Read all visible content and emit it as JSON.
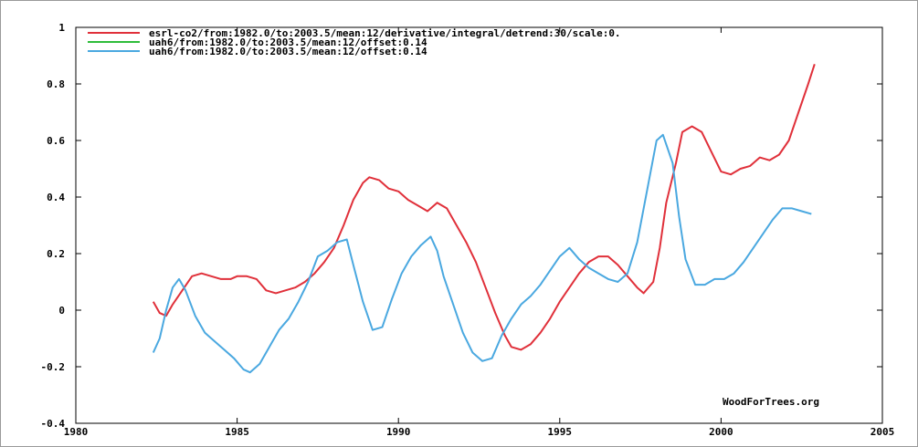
{
  "chart_data": {
    "type": "line",
    "title": "",
    "xlabel": "",
    "ylabel": "",
    "xlim": [
      1980,
      2005
    ],
    "ylim": [
      -0.4,
      1
    ],
    "xticks": [
      1980,
      1985,
      1990,
      1995,
      2000,
      2005
    ],
    "yticks": [
      -0.4,
      -0.2,
      0,
      0.2,
      0.4,
      0.6,
      0.8,
      1
    ],
    "xtick_labels": [
      "1980",
      "1985",
      "1990",
      "1995",
      "2000",
      "2005"
    ],
    "ytick_labels": [
      "-0.4",
      "-0.2",
      "0",
      "0.2",
      "0.4",
      "0.6",
      "0.8",
      "1"
    ],
    "grid": false,
    "legend_position": "top-left",
    "credit": "WoodForTrees.org",
    "series": [
      {
        "name": "esrl-co2/from:1982.0/to:2003.5/mean:12/derivative/integral/detrend:30/scale:0.",
        "color": "#e0303a",
        "x": [
          1982.4,
          1982.6,
          1982.8,
          1983.0,
          1983.3,
          1983.6,
          1983.9,
          1984.2,
          1984.5,
          1984.8,
          1985.0,
          1985.3,
          1985.6,
          1985.9,
          1986.2,
          1986.5,
          1986.8,
          1987.1,
          1987.4,
          1987.7,
          1988.0,
          1988.3,
          1988.6,
          1988.9,
          1989.1,
          1989.4,
          1989.7,
          1990.0,
          1990.3,
          1990.6,
          1990.9,
          1991.2,
          1991.5,
          1991.8,
          1992.1,
          1992.4,
          1992.7,
          1993.0,
          1993.3,
          1993.5,
          1993.8,
          1994.1,
          1994.4,
          1994.7,
          1995.0,
          1995.3,
          1995.6,
          1995.9,
          1996.2,
          1996.5,
          1996.8,
          1997.1,
          1997.4,
          1997.6,
          1997.9,
          1998.1,
          1998.3,
          1998.6,
          1998.8,
          1999.1,
          1999.4,
          1999.7,
          2000.0,
          2000.3,
          2000.6,
          2000.9,
          2001.2,
          2001.5,
          2001.8,
          2002.1,
          2002.4,
          2002.7,
          2002.9
        ],
        "y": [
          0.03,
          -0.01,
          -0.02,
          0.02,
          0.07,
          0.12,
          0.13,
          0.12,
          0.11,
          0.11,
          0.12,
          0.12,
          0.11,
          0.07,
          0.06,
          0.07,
          0.08,
          0.1,
          0.13,
          0.17,
          0.22,
          0.3,
          0.39,
          0.45,
          0.47,
          0.46,
          0.43,
          0.42,
          0.39,
          0.37,
          0.35,
          0.38,
          0.36,
          0.3,
          0.24,
          0.17,
          0.08,
          -0.01,
          -0.09,
          -0.13,
          -0.14,
          -0.12,
          -0.08,
          -0.03,
          0.03,
          0.08,
          0.13,
          0.17,
          0.19,
          0.19,
          0.16,
          0.12,
          0.08,
          0.06,
          0.1,
          0.22,
          0.38,
          0.52,
          0.63,
          0.65,
          0.63,
          0.56,
          0.49,
          0.48,
          0.5,
          0.51,
          0.54,
          0.53,
          0.55,
          0.6,
          0.7,
          0.8,
          0.87
        ]
      },
      {
        "name": "uah6/from:1982.0/to:2003.5/mean:12/offset:0.14",
        "color": "#2ebd3a",
        "x": [],
        "y": []
      },
      {
        "name": "uah6/from:1982.0/to:2003.5/mean:12/offset:0.14",
        "color": "#4aa8e0",
        "x": [
          1982.4,
          1982.6,
          1982.8,
          1983.0,
          1983.2,
          1983.4,
          1983.7,
          1984.0,
          1984.3,
          1984.6,
          1984.9,
          1985.2,
          1985.4,
          1985.7,
          1986.0,
          1986.3,
          1986.6,
          1986.9,
          1987.2,
          1987.5,
          1987.8,
          1988.1,
          1988.4,
          1988.6,
          1988.9,
          1989.2,
          1989.5,
          1989.8,
          1990.1,
          1990.4,
          1990.7,
          1991.0,
          1991.2,
          1991.4,
          1991.7,
          1992.0,
          1992.3,
          1992.6,
          1992.9,
          1993.2,
          1993.5,
          1993.8,
          1994.1,
          1994.4,
          1994.7,
          1995.0,
          1995.3,
          1995.6,
          1995.9,
          1996.2,
          1996.5,
          1996.8,
          1997.1,
          1997.4,
          1997.7,
          1998.0,
          1998.2,
          1998.5,
          1998.7,
          1998.9,
          1999.2,
          1999.5,
          1999.8,
          2000.1,
          2000.4,
          2000.7,
          2001.0,
          2001.3,
          2001.6,
          2001.9,
          2002.2,
          2002.5,
          2002.8
        ],
        "y": [
          -0.15,
          -0.1,
          0.0,
          0.08,
          0.11,
          0.07,
          -0.02,
          -0.08,
          -0.11,
          -0.14,
          -0.17,
          -0.21,
          -0.22,
          -0.19,
          -0.13,
          -0.07,
          -0.03,
          0.03,
          0.1,
          0.19,
          0.21,
          0.24,
          0.25,
          0.16,
          0.03,
          -0.07,
          -0.06,
          0.04,
          0.13,
          0.19,
          0.23,
          0.26,
          0.21,
          0.12,
          0.02,
          -0.08,
          -0.15,
          -0.18,
          -0.17,
          -0.09,
          -0.03,
          0.02,
          0.05,
          0.09,
          0.14,
          0.19,
          0.22,
          0.18,
          0.15,
          0.13,
          0.11,
          0.1,
          0.13,
          0.24,
          0.42,
          0.6,
          0.62,
          0.52,
          0.33,
          0.18,
          0.09,
          0.09,
          0.11,
          0.11,
          0.13,
          0.17,
          0.22,
          0.27,
          0.32,
          0.36,
          0.36,
          0.35,
          0.34
        ]
      }
    ]
  }
}
